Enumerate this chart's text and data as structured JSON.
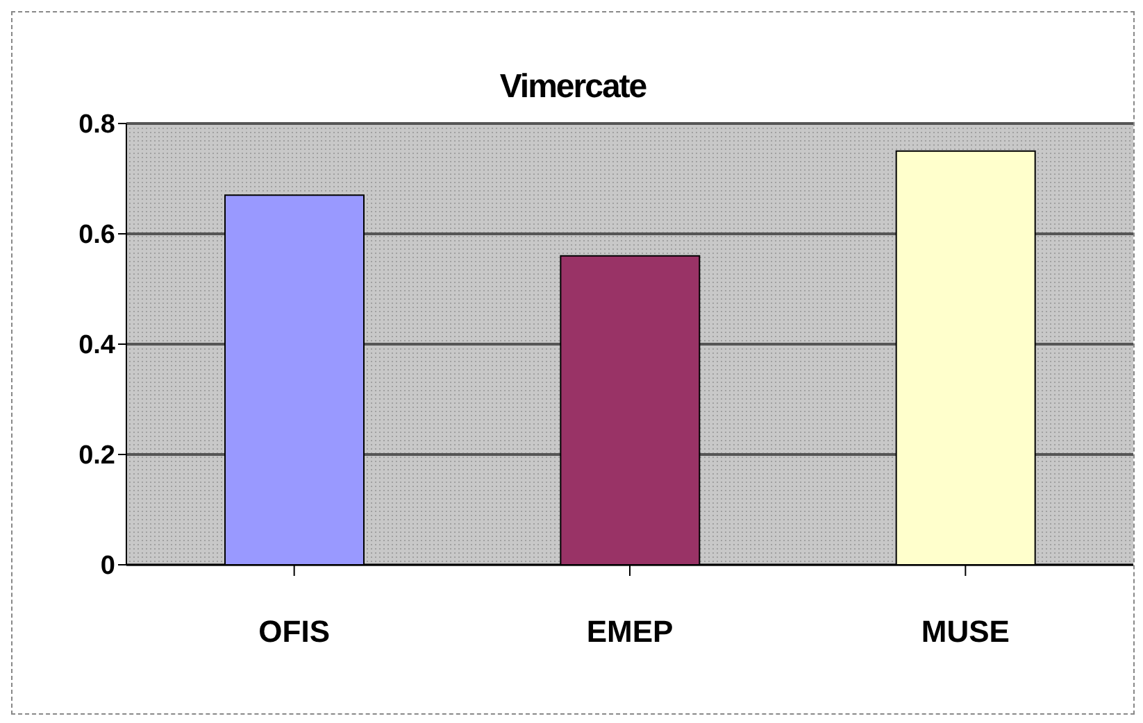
{
  "chart_data": {
    "type": "bar",
    "title": "Vimercate",
    "categories": [
      "OFIS",
      "EMEP",
      "MUSE"
    ],
    "values": [
      0.67,
      0.56,
      0.75
    ],
    "colors": [
      "#9999ff",
      "#993366",
      "#ffffcc"
    ],
    "ylim": [
      0,
      0.8
    ],
    "yticks": [
      0,
      0.2,
      0.4,
      0.6,
      0.8
    ],
    "grid": "y"
  }
}
